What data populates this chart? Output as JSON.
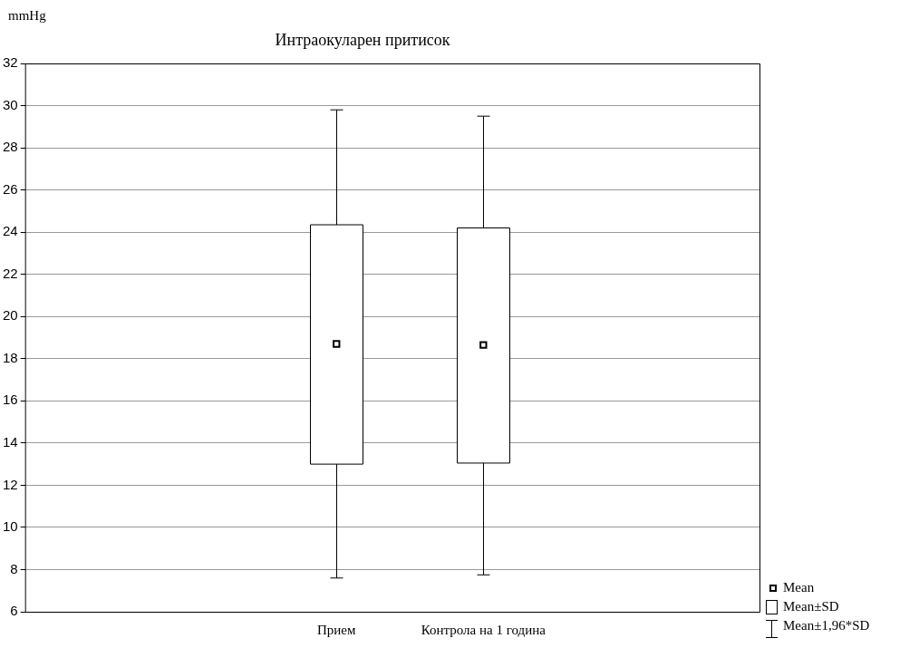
{
  "chart_data": {
    "type": "box",
    "title": "Интраокуларен притисок",
    "ylabel": "mmHg",
    "categories": [
      "Прием",
      "Контрола на 1 година"
    ],
    "boxes": [
      {
        "low": 7.6,
        "q1": 13.0,
        "median": 18.7,
        "q3": 24.35,
        "high": 29.8
      },
      {
        "low": 7.75,
        "q1": 13.05,
        "median": 18.65,
        "q3": 24.2,
        "high": 29.5
      }
    ],
    "ylim": [
      6,
      32
    ],
    "yticks": [
      6,
      8,
      10,
      12,
      14,
      16,
      18,
      20,
      22,
      24,
      26,
      28,
      30,
      32
    ],
    "grid": "y",
    "marker": "square",
    "annotations": [
      "Mean",
      "Mean±SD",
      "Mean±1,96*SD"
    ]
  }
}
